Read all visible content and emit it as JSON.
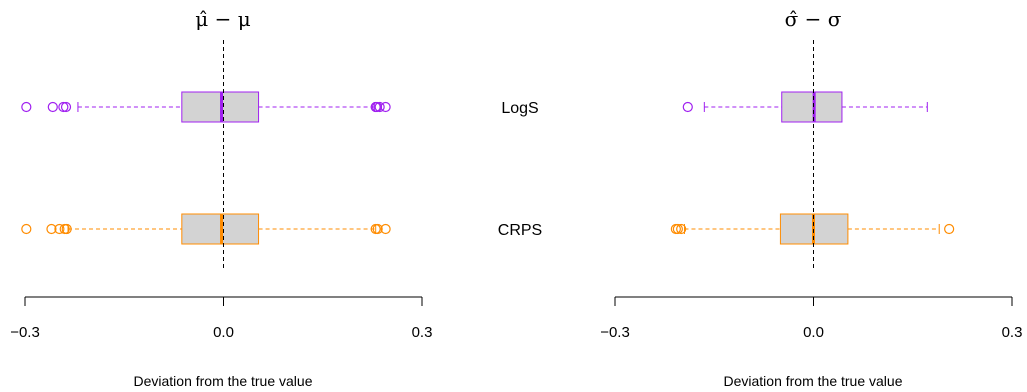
{
  "chart_data": [
    {
      "type": "boxplot",
      "title": "μ̂ − μ",
      "xlabel": "Deviation from the true value",
      "xlim": [
        -0.3,
        0.3
      ],
      "xticks": [
        "−0.3",
        "0.0",
        "0.3"
      ],
      "xtick_values": [
        -0.3,
        0.0,
        0.3
      ],
      "reference_line": 0.0,
      "series": [
        {
          "name": "LogS",
          "color": "#A020F0",
          "q1": -0.063,
          "median": -0.003,
          "q3": 0.053,
          "whisker_low": -0.22,
          "whisker_high": 0.228,
          "outliers": [
            -0.298,
            -0.258,
            -0.242,
            -0.238,
            0.23,
            0.232,
            0.236,
            0.245
          ]
        },
        {
          "name": "CRPS",
          "color": "#FF8C00",
          "q1": -0.063,
          "median": -0.003,
          "q3": 0.053,
          "whisker_low": -0.235,
          "whisker_high": 0.23,
          "outliers": [
            -0.298,
            -0.26,
            -0.248,
            -0.24,
            -0.237,
            0.23,
            0.233,
            0.245
          ]
        }
      ]
    },
    {
      "type": "boxplot",
      "title": "σ̂ − σ",
      "xlabel": "Deviation from the true value",
      "xlim": [
        -0.3,
        0.3
      ],
      "xticks": [
        "−0.3",
        "0.0",
        "0.3"
      ],
      "xtick_values": [
        -0.3,
        0.0,
        0.3
      ],
      "reference_line": 0.0,
      "series": [
        {
          "name": "LogS",
          "color": "#A020F0",
          "q1": -0.048,
          "median": 0.001,
          "q3": 0.043,
          "whisker_low": -0.165,
          "whisker_high": 0.172,
          "outliers": [
            -0.19
          ]
        },
        {
          "name": "CRPS",
          "color": "#FF8C00",
          "q1": -0.05,
          "median": 0.0,
          "q3": 0.052,
          "whisker_low": -0.195,
          "whisker_high": 0.19,
          "outliers": [
            -0.208,
            -0.205,
            -0.2,
            0.205
          ]
        }
      ]
    }
  ]
}
